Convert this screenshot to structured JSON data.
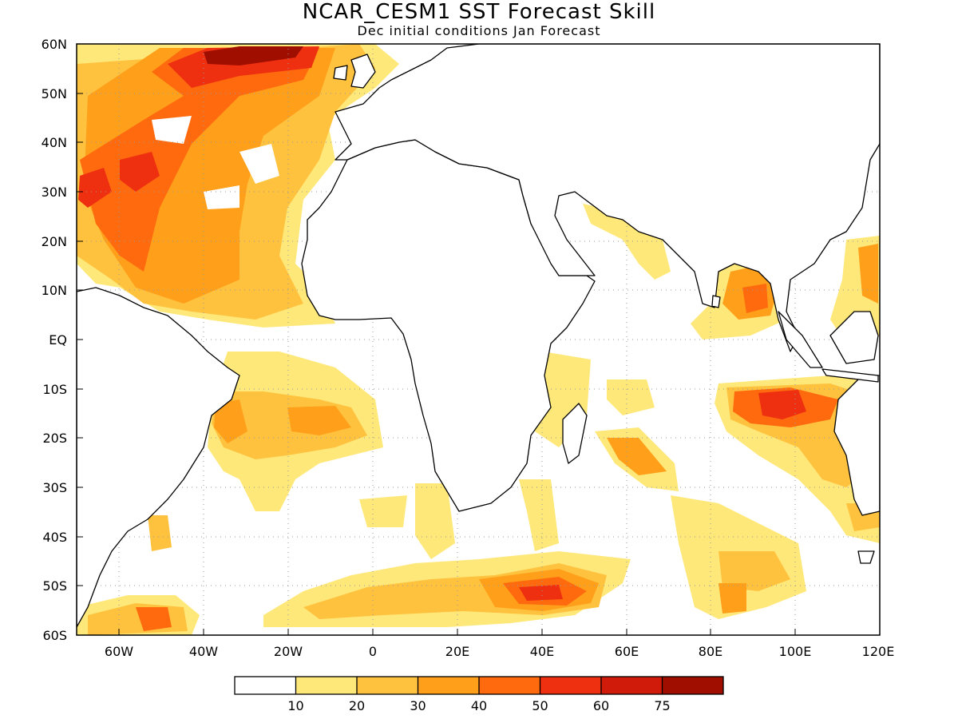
{
  "header": {
    "title": "NCAR_CESM1 SST Forecast Skill",
    "subtitle": "Dec initial conditions  Jan Forecast"
  },
  "map": {
    "lon_range": [
      -70,
      120
    ],
    "lat_range": [
      -60,
      60
    ],
    "y_ticks": [
      "60N",
      "50N",
      "40N",
      "30N",
      "20N",
      "10N",
      "EQ",
      "10S",
      "20S",
      "30S",
      "40S",
      "50S",
      "60S"
    ],
    "x_ticks": [
      "60W",
      "40W",
      "20W",
      "0",
      "20E",
      "40E",
      "60E",
      "80E",
      "100E",
      "120E"
    ],
    "x_tick_lons": [
      -60,
      -40,
      -20,
      0,
      20,
      40,
      60,
      80,
      100,
      120
    ],
    "y_tick_lats": [
      60,
      50,
      40,
      30,
      20,
      10,
      0,
      -10,
      -20,
      -30,
      -40,
      -50,
      -60
    ],
    "grid": "dotted",
    "coastline_color": "#000000"
  },
  "colorbar": {
    "labels": [
      "10",
      "20",
      "30",
      "40",
      "50",
      "60",
      "75"
    ],
    "colors": [
      "#ffffff",
      "#ffe87a",
      "#ffc23e",
      "#ff9f1a",
      "#ff6a0f",
      "#ee3010",
      "#d01a0a",
      "#a00e00"
    ]
  }
}
